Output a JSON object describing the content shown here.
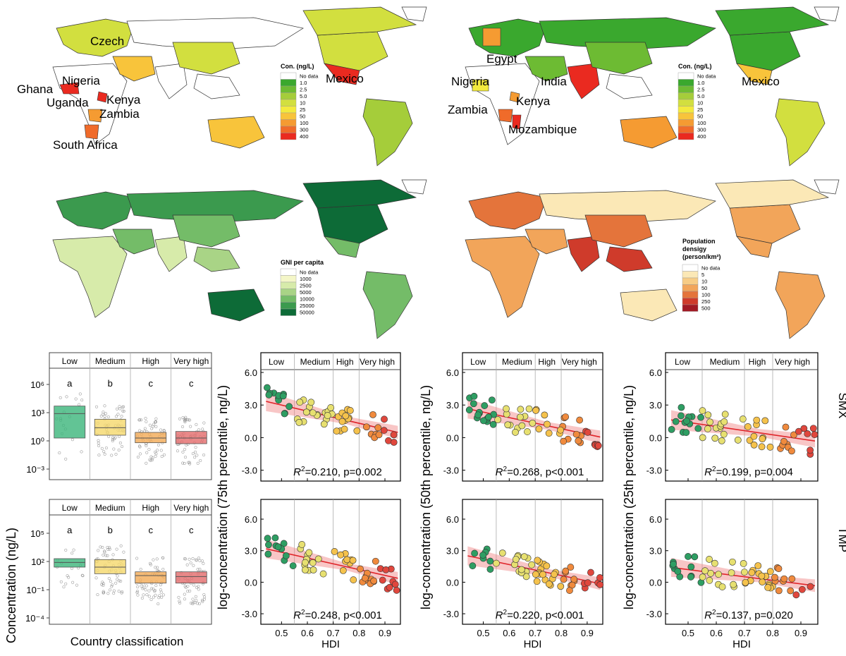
{
  "maps": [
    {
      "id": "smx_map",
      "legend_title": "Con. (ng/L)",
      "legend_items": [
        "No data",
        "1.0",
        "2.5",
        "5.0",
        "10",
        "25",
        "50",
        "100",
        "300",
        "400"
      ],
      "legend_colors": [
        "#ffffff",
        "#3aa82e",
        "#6dbb33",
        "#a5cd3a",
        "#d2df3f",
        "#f3ea3e",
        "#f8c43b",
        "#f59b32",
        "#f06b2a",
        "#ea2a20"
      ],
      "countries": [
        "Czech",
        "Nigeria",
        "Ghana",
        "Uganda",
        "Kenya",
        "Zambia",
        "South Africa",
        "Mexico"
      ]
    },
    {
      "id": "tmp_map",
      "legend_title": "Con. (ng/L)",
      "legend_items": [
        "No data",
        "1.0",
        "2.5",
        "5.0",
        "10",
        "25",
        "50",
        "100",
        "300",
        "400"
      ],
      "legend_colors": [
        "#ffffff",
        "#3aa82e",
        "#6dbb33",
        "#a5cd3a",
        "#d2df3f",
        "#f3ea3e",
        "#f8c43b",
        "#f59b32",
        "#f06b2a",
        "#ea2a20"
      ],
      "countries": [
        "Egypt",
        "Nigeria",
        "India",
        "Kenya",
        "Zambia",
        "Mozambique",
        "Mexico"
      ]
    },
    {
      "id": "gni_map",
      "legend_title": "GNI per capita",
      "legend_items": [
        "No data",
        "1000",
        "2500",
        "5000",
        "10000",
        "25000",
        "50000"
      ],
      "legend_colors": [
        "#ffffff",
        "#f4f6c8",
        "#d7ebaa",
        "#a9d486",
        "#74bc68",
        "#3b9a4e",
        "#0d6b37"
      ]
    },
    {
      "id": "pop_map",
      "legend_title": "Population densigy (person/km²)",
      "legend_items": [
        "No data",
        "5",
        "10",
        "50",
        "100",
        "250",
        "500"
      ],
      "legend_colors": [
        "#ffffff",
        "#fbe8b6",
        "#f7cc85",
        "#f2a55a",
        "#e4743b",
        "#cf3b2b",
        "#a11a24"
      ]
    }
  ],
  "chart_data": [
    {
      "type": "box",
      "id": "box_smx",
      "categories": [
        "Low",
        "Medium",
        "High",
        "Very high"
      ],
      "colors": [
        "#3bb57a",
        "#f5d86b",
        "#f2aa55",
        "#e46b6b"
      ],
      "y_ticks": [
        "10⁶",
        "10³",
        "10⁰",
        "10⁻³"
      ],
      "letters": [
        "a",
        "b",
        "c",
        "c"
      ],
      "log_median": [
        2.9,
        1.4,
        0.3,
        0.3
      ],
      "log_q1": [
        0.3,
        0.6,
        -0.2,
        -0.3
      ],
      "log_q3": [
        3.7,
        2.3,
        0.9,
        1.0
      ]
    },
    {
      "type": "box",
      "id": "box_tmp",
      "categories": [
        "Low",
        "Medium",
        "High",
        "Very high"
      ],
      "colors": [
        "#3bb57a",
        "#f5d86b",
        "#f2aa55",
        "#e46b6b"
      ],
      "y_ticks": [
        "10⁵",
        "10²",
        "10⁻¹",
        "10⁻⁴"
      ],
      "letters": [
        "a",
        "b",
        "c",
        "c"
      ],
      "log_median": [
        1.9,
        1.4,
        0.5,
        0.4
      ],
      "log_q1": [
        1.4,
        0.7,
        -0.3,
        -0.3
      ],
      "log_q3": [
        2.3,
        2.2,
        0.9,
        0.9
      ]
    },
    {
      "type": "scatter",
      "id": "smx_p75",
      "r2_label": "R",
      "r2_text": "=0.210, p=0.002",
      "intercept": 5.8,
      "slope": -5.6
    },
    {
      "type": "scatter",
      "id": "smx_p50",
      "r2_label": "R",
      "r2_text": "=0.268, p<0.001",
      "intercept": 4.9,
      "slope": -5.1
    },
    {
      "type": "scatter",
      "id": "smx_p25",
      "r2_label": "R",
      "r2_text": "=0.199, p=0.004",
      "intercept": 3.3,
      "slope": -3.8
    },
    {
      "type": "scatter",
      "id": "tmp_p75",
      "r2_label": "R",
      "r2_text": "=0.248, p<0.001",
      "intercept": 5.6,
      "slope": -5.5
    },
    {
      "type": "scatter",
      "id": "tmp_p50",
      "r2_label": "R",
      "r2_text": "=0.220, p<0.001",
      "intercept": 4.8,
      "slope": -5.2
    },
    {
      "type": "scatter",
      "id": "tmp_p25",
      "r2_label": "R",
      "r2_text": "=0.137, p=0.020",
      "intercept": 2.9,
      "slope": -3.4
    }
  ],
  "scatter_axes": {
    "header": [
      "Low",
      "Medium",
      "High",
      "Very high"
    ],
    "x_ticks": [
      "0.5",
      "0.6",
      "0.7",
      "0.8",
      "0.9"
    ],
    "y_ticks": [
      "6.0",
      "3.0",
      "0.0",
      "-3.0"
    ],
    "xlabel": "HDI",
    "ylabels": [
      "log-concentration (75th percentile, ng/L)",
      "log-concentration (50th percentile, ng/L)",
      "log-concentration (25th percentile, ng/L)"
    ]
  },
  "box_axes": {
    "ylabel": "Concentration (ng/L)",
    "xlabel": "Country classification"
  },
  "row_labels": [
    "SMX",
    "TMP"
  ]
}
